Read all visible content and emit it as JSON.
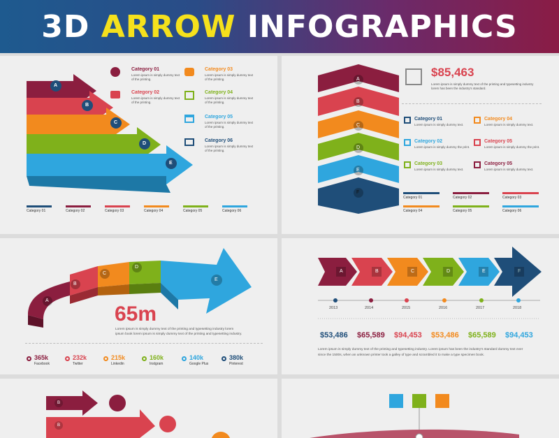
{
  "title": {
    "part1": "3D ",
    "part2": "ARROW",
    "part3": " INFOGRAPHICS"
  },
  "colors": [
    "#1f4e79",
    "#8b1e3f",
    "#d9434f",
    "#f28a1e",
    "#7fb11b",
    "#2fa6de"
  ],
  "panel1": {
    "letters": [
      "A",
      "B",
      "C",
      "D",
      "E"
    ],
    "categories": [
      {
        "name": "Category 01",
        "desc": "Lorem ipsum is simply dummy text of the printing.",
        "icon": "globe-icon"
      },
      {
        "name": "Category 02",
        "desc": "Lorem ipsum is simply dummy text of the printing.",
        "icon": "medical-kit-icon"
      },
      {
        "name": "Category 03",
        "desc": "Lorem ipsum is simply dummy text of the printing.",
        "icon": "coins-icon"
      },
      {
        "name": "Category 04",
        "desc": "Lorem ipsum is simply dummy text of the printing.",
        "icon": "building-icon"
      },
      {
        "name": "Category 05",
        "desc": "Lorem ipsum is simply dummy text of the printing.",
        "icon": "browser-icon"
      },
      {
        "name": "Category 06",
        "desc": "Lorem ipsum is simply dummy text of the printing.",
        "icon": "monitor-icon"
      }
    ],
    "legend": [
      "Category 01",
      "Category 02",
      "Category 03",
      "Category 04",
      "Category 05",
      "Category 06"
    ]
  },
  "panel2": {
    "letters": [
      "A",
      "B",
      "C",
      "D",
      "E",
      "F"
    ],
    "amount": "$85,463",
    "amount_desc": "Lorem ipsum is simply dummy text of the printing and typesetting industry lorem has been the industry's standard.",
    "categories": [
      {
        "name": "Category 01",
        "desc": "Lorem ipsum is simply dummy text."
      },
      {
        "name": "Category 04",
        "desc": "Lorem ipsum is simply dummy text."
      },
      {
        "name": "Category 02",
        "desc": "Lorem ipsum is simply dummy the print."
      },
      {
        "name": "Category 05",
        "desc": "Lorem ipsum is simply dummy the print."
      },
      {
        "name": "Category 03",
        "desc": "Lorem ipsum is simply dummy text."
      },
      {
        "name": "Category 05",
        "desc": "Lorem ipsum is simply dummy text."
      }
    ],
    "legend": [
      "Category 01",
      "Category 02",
      "Category 03",
      "Category 04",
      "Category 05",
      "Category 06"
    ]
  },
  "panel3": {
    "letters": [
      "A",
      "B",
      "C",
      "D",
      "E"
    ],
    "big_number": "65m",
    "desc1": "Lorem ipsum is simply dummy text of the printing and typesetting industry lorem",
    "desc2": "ipsum book lorem ipsum is simply dummy text of the printing and typesetting industry.",
    "stats": [
      {
        "value": "365k",
        "label": "Facebook"
      },
      {
        "value": "232k",
        "label": "Twitter"
      },
      {
        "value": "215k",
        "label": "Linkedin"
      },
      {
        "value": "160k",
        "label": "Instgram"
      },
      {
        "value": "140k",
        "label": "Google Plus"
      },
      {
        "value": "380k",
        "label": "Pinterest"
      }
    ]
  },
  "panel4": {
    "letters": [
      "A",
      "B",
      "C",
      "D",
      "E",
      "F"
    ],
    "years": [
      "2013",
      "2014",
      "2015",
      "2016",
      "2017",
      "2018"
    ],
    "amounts": [
      "$53,486",
      "$65,589",
      "$94,453",
      "$53,486",
      "$65,589",
      "$94,453"
    ],
    "desc1": "Lorem ipsum is simply dummy text of the printing and typesetting industry. Lorem ipsum has been the industry's standard dummy text ever",
    "desc2": "since the 1500s, when an unknown printer took a galley of type and scrambled it to make a type specimen book."
  },
  "panel5": {
    "letters": [
      "B",
      "B"
    ]
  },
  "panel6": {}
}
